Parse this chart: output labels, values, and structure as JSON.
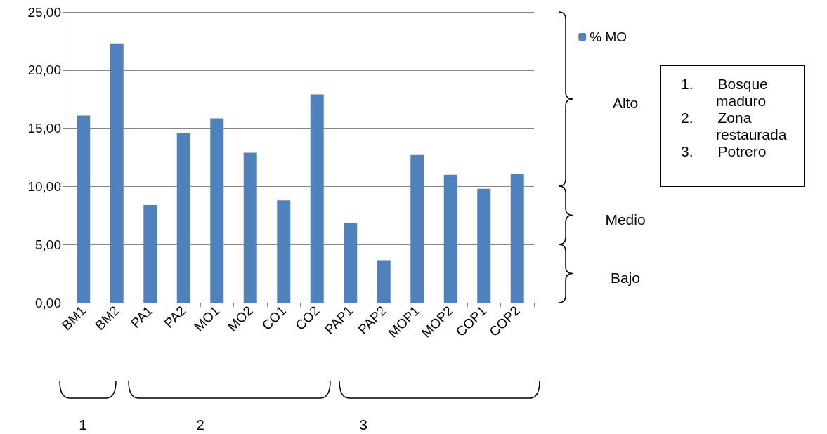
{
  "chart_data": {
    "type": "bar",
    "categories": [
      "BM1",
      "BM2",
      "PA1",
      "PA2",
      "MO1",
      "MO2",
      "CO1",
      "CO2",
      "PAP1",
      "PAP2",
      "MOP1",
      "MOP2",
      "COP1",
      "COP2"
    ],
    "series": [
      {
        "name": "% MO",
        "color": "#4f81bd",
        "values": [
          16.1,
          22.3,
          8.4,
          14.55,
          15.85,
          12.9,
          8.8,
          17.9,
          6.85,
          3.65,
          12.7,
          11.0,
          9.8,
          11.05
        ]
      }
    ],
    "ylim": [
      0,
      25
    ],
    "yticks": [
      {
        "value": 0,
        "label": "0,00"
      },
      {
        "value": 5,
        "label": "5,00"
      },
      {
        "value": 10,
        "label": "10,00"
      },
      {
        "value": 15,
        "label": "15,00"
      },
      {
        "value": 20,
        "label": "20,00"
      },
      {
        "value": 25,
        "label": "25,00"
      }
    ],
    "grid": "y",
    "legend": "top right",
    "annotations": [
      "1",
      "2",
      "3",
      "1. Bosque maduro",
      "2. Zona restaurada",
      "3. Potrero",
      "Alto",
      "Medio",
      "Bajo"
    ]
  }
}
